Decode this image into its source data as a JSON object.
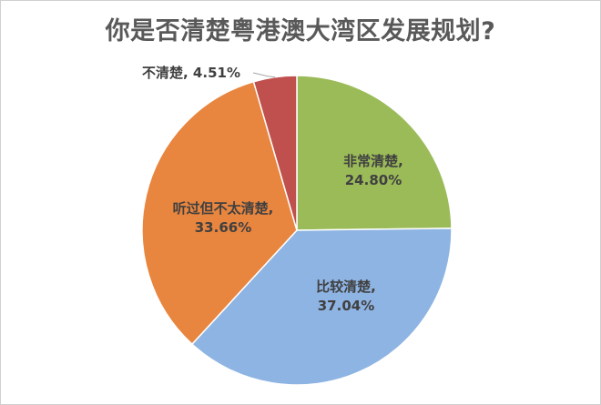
{
  "chart_data": {
    "type": "pie",
    "title": "你是否清楚粤港澳大湾区发展规划?",
    "categories": [
      "非常清楚",
      "比较清楚",
      "听过但不太清楚",
      "不清楚"
    ],
    "values": [
      24.8,
      37.04,
      33.66,
      4.51
    ],
    "value_labels": [
      "24.80%",
      "37.04%",
      "33.66%",
      "4.51%"
    ],
    "colors": [
      "#9BBB59",
      "#8EB4E3",
      "#E8853E",
      "#C0504D"
    ],
    "start_angle": "12 o'clock",
    "direction": "clockwise",
    "legend": "none",
    "data_labels": "category name and percentage"
  }
}
